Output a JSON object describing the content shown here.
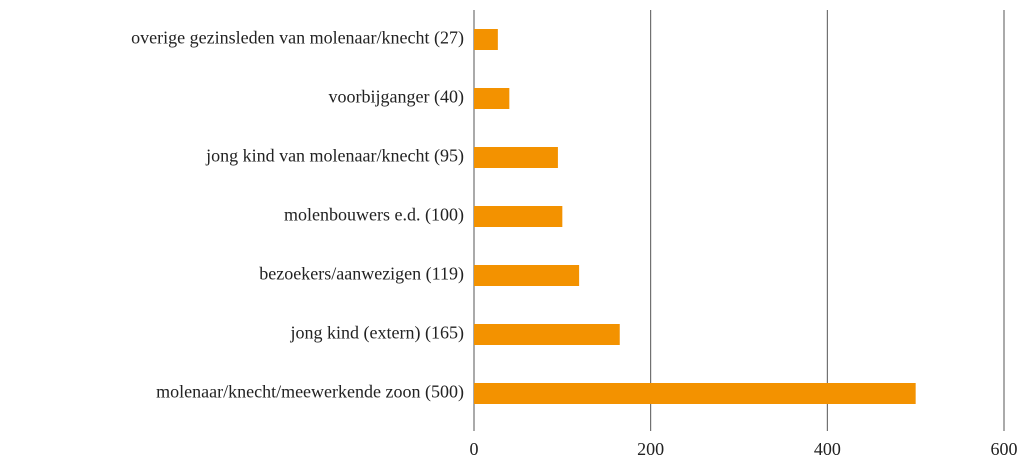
{
  "chart_data": {
    "type": "bar",
    "orientation": "horizontal",
    "categories": [
      "overige gezinsleden van molenaar/knecht (27)",
      "voorbijganger (40)",
      "jong kind van molenaar/knecht (95)",
      "molenbouwers e.d. (100)",
      "bezoekers/aanwezigen (119)",
      "jong kind (extern) (165)",
      "molenaar/knecht/meewerkende zoon (500)"
    ],
    "values": [
      27,
      40,
      95,
      100,
      119,
      165,
      500
    ],
    "color": "#f39200",
    "xlim": [
      0,
      600
    ],
    "xticks": [
      0,
      200,
      400,
      600
    ],
    "grid": true
  }
}
